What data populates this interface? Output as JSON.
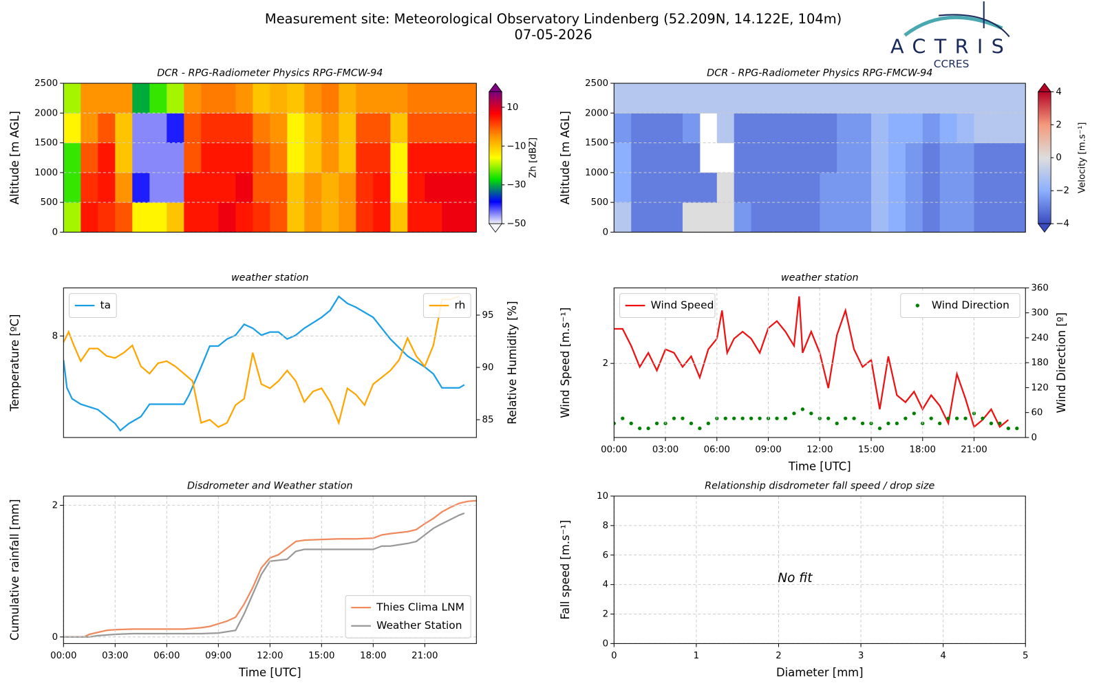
{
  "header": {
    "title": "Measurement site: Meteorological Observatory Lindenberg (52.209N, 14.122E, 104m)",
    "date": "07-05-2026",
    "logo": "ACTRIS",
    "logo_sub": "CCRES"
  },
  "chart_data": [
    {
      "type": "heatmap",
      "title": "DCR - RPG-Radiometer Physics RPG-FMCW-94",
      "ylabel": "Altitude [m AGL]",
      "cblabel": "Zh [dBZ]",
      "xlim": [
        0,
        24
      ],
      "ylim": [
        0,
        2500
      ],
      "yticks": [
        0,
        500,
        1000,
        1500,
        2000,
        2500
      ],
      "grid": true,
      "x": [
        0.5,
        1.5,
        2.5,
        3.5,
        4.5,
        5.5,
        6.5,
        7.5,
        8.5,
        9.5,
        10.5,
        11.5,
        12.5,
        13.5,
        14.5,
        15.5,
        16.5,
        17.5,
        18.5,
        19.5,
        20.5,
        21.5,
        22.5,
        23.5
      ],
      "y": [
        250,
        750,
        1250,
        1750,
        2250
      ],
      "values": [
        [
          -20,
          5,
          3,
          0,
          -15,
          -15,
          -10,
          5,
          5,
          8,
          5,
          3,
          0,
          -10,
          -5,
          -8,
          -5,
          3,
          5,
          -10,
          5,
          5,
          8,
          8
        ],
        [
          -25,
          3,
          5,
          -5,
          -40,
          -45,
          -45,
          5,
          5,
          5,
          8,
          0,
          0,
          -10,
          -5,
          -8,
          -5,
          3,
          5,
          -15,
          5,
          8,
          8,
          8
        ],
        [
          -25,
          0,
          5,
          -10,
          -45,
          -45,
          -45,
          0,
          5,
          5,
          5,
          0,
          -3,
          -15,
          -10,
          -5,
          -10,
          3,
          3,
          -15,
          5,
          5,
          5,
          5
        ],
        [
          -15,
          -5,
          0,
          -10,
          -45,
          -45,
          -40,
          0,
          3,
          3,
          3,
          -3,
          -5,
          -15,
          -10,
          -5,
          -10,
          0,
          0,
          -10,
          0,
          0,
          0,
          0
        ],
        [
          -20,
          -5,
          -5,
          -5,
          -30,
          -25,
          -20,
          -5,
          -3,
          -3,
          -5,
          -10,
          -8,
          -10,
          -5,
          -3,
          -8,
          -5,
          -5,
          -5,
          -3,
          -3,
          -3,
          -3
        ]
      ],
      "clim": [
        -50,
        18
      ],
      "cbticks": [
        {
          "value": -50,
          "label": "−50"
        },
        {
          "value": -30,
          "label": "−30"
        },
        {
          "value": -10,
          "label": "−10"
        },
        10
      ],
      "colormap": [
        "#f4f4f8",
        "#0000ff",
        "#00e000",
        "#ffff00",
        "#ff9000",
        "#ff0000",
        "#7a0080"
      ]
    },
    {
      "type": "heatmap",
      "title": "DCR - RPG-Radiometer Physics RPG-FMCW-94",
      "ylabel": "Altitude [m AGL]",
      "cblabel": "Velocity [m.s⁻¹]",
      "xlim": [
        0,
        24
      ],
      "ylim": [
        0,
        2500
      ],
      "yticks": [
        0,
        500,
        1000,
        1500,
        2000,
        2500
      ],
      "grid": true,
      "x": [
        0.5,
        1.5,
        2.5,
        3.5,
        4.5,
        5.5,
        6.5,
        7.5,
        8.5,
        9.5,
        10.5,
        11.5,
        12.5,
        13.5,
        14.5,
        15.5,
        16.5,
        17.5,
        18.5,
        19.5,
        20.5,
        21.5,
        22.5,
        23.5
      ],
      "y": [
        250,
        750,
        1250,
        1750,
        2250
      ],
      "values": [
        [
          -1,
          -3,
          -3,
          -3,
          0,
          0,
          0,
          -2.5,
          -3,
          -3,
          -3,
          -3,
          -2.5,
          -2.5,
          -2.5,
          -1.5,
          -2,
          -2.5,
          -3,
          -2.5,
          -2.5,
          -3,
          -3,
          -3
        ],
        [
          -2,
          -3,
          -3,
          -3,
          -3,
          -3,
          0,
          -3,
          -3,
          -3,
          -3,
          -3,
          -2.5,
          -2.5,
          -2.5,
          -1.5,
          -2,
          -2.5,
          -3,
          -2.5,
          -2.5,
          -3,
          -3,
          -3
        ],
        [
          -2,
          -3,
          -3,
          -3,
          -3,
          null,
          null,
          -3,
          -3,
          -3,
          -3,
          -3,
          -3,
          -2.5,
          -2.5,
          -1.5,
          -2,
          -2.5,
          -3,
          -2.5,
          -2.5,
          -3,
          -3,
          -3
        ],
        [
          -2.5,
          -3,
          -3,
          -3,
          -2.5,
          null,
          -1,
          -3,
          -3,
          -3,
          -3,
          -3,
          -3,
          -2.5,
          -2.5,
          -1.5,
          -2,
          -2,
          -2.5,
          -2,
          -1.5,
          -1,
          -1,
          -1
        ],
        [
          -1,
          -1,
          -1,
          -1,
          -1,
          -1,
          -1,
          -1,
          -1,
          -1,
          -1,
          -1,
          -1,
          -1,
          -1,
          -1,
          -1,
          -1,
          -1,
          -1,
          -1,
          -1,
          -1,
          -1
        ]
      ],
      "clim": [
        -4,
        4
      ],
      "cbticks": [
        {
          "value": -4,
          "label": "−4"
        },
        {
          "value": -2,
          "label": "−2"
        },
        0,
        2,
        4
      ],
      "colormap": [
        "#3a4cc0",
        "#8db0fe",
        "#dddddd",
        "#f49a7b",
        "#b40426"
      ]
    },
    {
      "type": "line",
      "title": "weather station",
      "ylabel": "Temperature [ºC]",
      "y2label": "Relative Humidity [%]",
      "xlim": [
        0,
        24
      ],
      "ylim": [
        6.69,
        8.62
      ],
      "yticks": [
        8
      ],
      "y2lim": [
        83.3,
        97.6
      ],
      "y2ticks": [
        85,
        90,
        95
      ],
      "grid": true,
      "series": [
        {
          "name": "ta",
          "color": "#1a9fe6",
          "legend": "upper left",
          "x": [
            0,
            0.2,
            0.5,
            1,
            2,
            3,
            3.3,
            3.8,
            4.5,
            5,
            6,
            7,
            7.3,
            8,
            8.5,
            9,
            9.5,
            10,
            10.5,
            11,
            11.5,
            12,
            12.5,
            13,
            13.5,
            14,
            15,
            15.5,
            16,
            16.5,
            17,
            18,
            19,
            20,
            21,
            21.5,
            22,
            22.5,
            23,
            23.3
          ],
          "values": [
            7.69,
            7.33,
            7.19,
            7.12,
            7.05,
            6.87,
            6.78,
            6.87,
            6.96,
            7.12,
            7.12,
            7.12,
            7.24,
            7.6,
            7.87,
            7.87,
            7.96,
            8.01,
            8.15,
            8.1,
            8.01,
            8.05,
            8.05,
            7.96,
            8.01,
            8.1,
            8.24,
            8.33,
            8.51,
            8.42,
            8.37,
            8.24,
            7.96,
            7.74,
            7.6,
            7.51,
            7.33,
            7.33,
            7.33,
            7.37
          ]
        },
        {
          "name": "rh",
          "color": "#ffa500",
          "axis": "y2",
          "legend": "upper right",
          "x": [
            0,
            0.3,
            0.6,
            1,
            1.5,
            2,
            2.5,
            3,
            3.5,
            4,
            4.5,
            5,
            5.5,
            6,
            6.5,
            7,
            7.5,
            8,
            8.5,
            9,
            9.5,
            10,
            10.5,
            11,
            11.5,
            12,
            12.5,
            13,
            13.5,
            14,
            14.5,
            15,
            15.5,
            16,
            16.5,
            17,
            17.5,
            18,
            19,
            19.5,
            20,
            20.5,
            21,
            21.5,
            22,
            22.5,
            23
          ],
          "values": [
            92.4,
            93.4,
            92.1,
            90.6,
            91.8,
            91.8,
            91.1,
            90.9,
            91.4,
            92.1,
            90.1,
            89.4,
            90.4,
            90.6,
            90.1,
            89.4,
            88.7,
            84.7,
            85.0,
            84.3,
            84.7,
            86.4,
            87.0,
            91.4,
            88.4,
            88.0,
            88.7,
            89.7,
            88.7,
            86.7,
            87.7,
            88.0,
            86.7,
            84.7,
            88.0,
            87.4,
            86.4,
            88.4,
            89.7,
            90.7,
            92.8,
            91.1,
            90.1,
            92.1,
            96.5,
            96.5,
            96.8
          ]
        }
      ]
    },
    {
      "type": "line",
      "title": "weather station",
      "ylabel": "Wind Speed [m.s⁻¹]",
      "y2label": "Wind Direction [º]",
      "xlabel": "Time [UTC]",
      "xlim": [
        0,
        24
      ],
      "xticks": [
        {
          "value": 0,
          "label": "00:00"
        },
        {
          "value": 3,
          "label": "03:00"
        },
        {
          "value": 6,
          "label": "06:00"
        },
        {
          "value": 9,
          "label": "09:00"
        },
        {
          "value": 12,
          "label": "12:00"
        },
        {
          "value": 15,
          "label": "15:00"
        },
        {
          "value": 18,
          "label": "18:00"
        },
        {
          "value": 21,
          "label": "21:00"
        }
      ],
      "ylim": [
        0.95,
        3.07
      ],
      "yticks": [
        2
      ],
      "y2lim": [
        0,
        360
      ],
      "y2ticks": [
        0,
        60,
        120,
        180,
        240,
        300,
        360
      ],
      "grid": true,
      "series": [
        {
          "name": "Wind Speed",
          "color": "#ee1111",
          "legend": "upper left",
          "x": [
            0,
            0.5,
            1,
            1.5,
            2,
            2.5,
            3,
            3.5,
            4,
            4.5,
            5,
            5.5,
            6,
            6.3,
            6.6,
            7,
            7.5,
            8,
            8.5,
            9,
            9.5,
            10,
            10.5,
            10.8,
            11,
            11.5,
            12,
            12.5,
            13,
            13.5,
            14,
            14.5,
            15,
            15.5,
            16,
            16.5,
            17,
            17.5,
            18,
            18.5,
            19,
            19.5,
            20,
            20.5,
            21,
            21.5,
            22,
            22.5,
            23
          ],
          "values": [
            2.49,
            2.49,
            2.25,
            1.95,
            2.15,
            1.9,
            2.2,
            2.15,
            1.95,
            2.1,
            1.8,
            2.2,
            2.35,
            2.75,
            2.15,
            2.35,
            2.45,
            2.35,
            2.15,
            2.5,
            2.6,
            2.45,
            2.25,
            2.95,
            2.15,
            2.45,
            2.15,
            1.65,
            2.4,
            2.75,
            2.2,
            1.95,
            2.05,
            1.35,
            2.1,
            1.55,
            1.45,
            1.6,
            1.35,
            1.55,
            1.4,
            1.15,
            1.85,
            1.5,
            1.1,
            1.2,
            1.35,
            1.1,
            1.2
          ]
        },
        {
          "name": "Wind Direction",
          "color": "#008000",
          "axis": "y2",
          "style": "markers",
          "legend": "upper right",
          "x": [
            0,
            0.5,
            1,
            1.5,
            2,
            2.5,
            3,
            3.5,
            4,
            4.5,
            5,
            5.5,
            6,
            6.5,
            7,
            7.5,
            8,
            8.5,
            9,
            9.5,
            10,
            10.5,
            11,
            11.5,
            12,
            12.5,
            13,
            13.5,
            14,
            14.5,
            15,
            15.5,
            16,
            16.5,
            17,
            17.5,
            18,
            18.5,
            19,
            19.5,
            20,
            20.5,
            21,
            21.5,
            22,
            22.5,
            23,
            23.5
          ],
          "values": [
            34,
            46,
            34,
            22,
            22,
            34,
            34,
            46,
            46,
            34,
            22,
            34,
            46,
            46,
            46,
            46,
            46,
            46,
            46,
            46,
            46,
            58,
            68,
            58,
            46,
            46,
            34,
            46,
            46,
            34,
            34,
            22,
            34,
            34,
            46,
            58,
            34,
            46,
            34,
            46,
            46,
            46,
            58,
            46,
            34,
            34,
            22,
            22
          ]
        }
      ]
    },
    {
      "type": "line",
      "title": "Disdrometer and Weather station",
      "ylabel": "Cumulative rainfall [mm]",
      "xlabel": "Time [UTC]",
      "legend": "lower right",
      "xlim": [
        0,
        24
      ],
      "xticks": [
        {
          "value": 0,
          "label": "00:00"
        },
        {
          "value": 3,
          "label": "03:00"
        },
        {
          "value": 6,
          "label": "06:00"
        },
        {
          "value": 9,
          "label": "09:00"
        },
        {
          "value": 12,
          "label": "12:00"
        },
        {
          "value": 15,
          "label": "15:00"
        },
        {
          "value": 18,
          "label": "18:00"
        },
        {
          "value": 21,
          "label": "21:00"
        }
      ],
      "ylim": [
        -0.1,
        2.14
      ],
      "yticks": [
        0,
        2
      ],
      "grid": true,
      "series": [
        {
          "name": "Thies Clima LNM",
          "color": "#f08a5d",
          "x": [
            0,
            1.2,
            1.5,
            2,
            2.5,
            3,
            4,
            5,
            6,
            7,
            8,
            8.5,
            9,
            9.5,
            10,
            10.5,
            11,
            11.5,
            12,
            12.5,
            13,
            13.5,
            14,
            15,
            16,
            17,
            18,
            18.5,
            19,
            20,
            20.5,
            21,
            21.5,
            22,
            22.5,
            23,
            23.5,
            24
          ],
          "values": [
            0,
            0,
            0.04,
            0.07,
            0.1,
            0.11,
            0.12,
            0.12,
            0.12,
            0.12,
            0.14,
            0.16,
            0.2,
            0.24,
            0.3,
            0.5,
            0.75,
            1.05,
            1.2,
            1.25,
            1.35,
            1.45,
            1.47,
            1.48,
            1.49,
            1.49,
            1.5,
            1.55,
            1.57,
            1.6,
            1.63,
            1.72,
            1.8,
            1.9,
            1.97,
            2.03,
            2.06,
            2.07
          ]
        },
        {
          "name": "Weather Station",
          "color": "#999999",
          "x": [
            0,
            1.5,
            2,
            3,
            4,
            5,
            6,
            7,
            8,
            9,
            10,
            10.5,
            11,
            11.5,
            12,
            13,
            13.5,
            14,
            15,
            16,
            17,
            18,
            18.5,
            19,
            20,
            20.5,
            21,
            21.5,
            22,
            23,
            23.3
          ],
          "values": [
            0,
            0,
            0.02,
            0.04,
            0.05,
            0.05,
            0.05,
            0.05,
            0.05,
            0.06,
            0.1,
            0.35,
            0.65,
            0.95,
            1.15,
            1.18,
            1.3,
            1.33,
            1.33,
            1.33,
            1.33,
            1.33,
            1.38,
            1.38,
            1.42,
            1.45,
            1.55,
            1.65,
            1.72,
            1.85,
            1.88
          ]
        }
      ]
    },
    {
      "type": "scatter",
      "title": "Relationship disdrometer fall speed / drop size",
      "ylabel": "Fall speed [m.s⁻¹]",
      "xlabel": "Diameter [mm]",
      "annotation": "No fit",
      "xlim": [
        0,
        5
      ],
      "xticks": [
        0,
        1,
        2,
        3,
        4,
        5
      ],
      "ylim": [
        0,
        10
      ],
      "yticks": [
        0,
        2,
        4,
        6,
        8,
        10
      ],
      "grid": true,
      "series": []
    }
  ]
}
